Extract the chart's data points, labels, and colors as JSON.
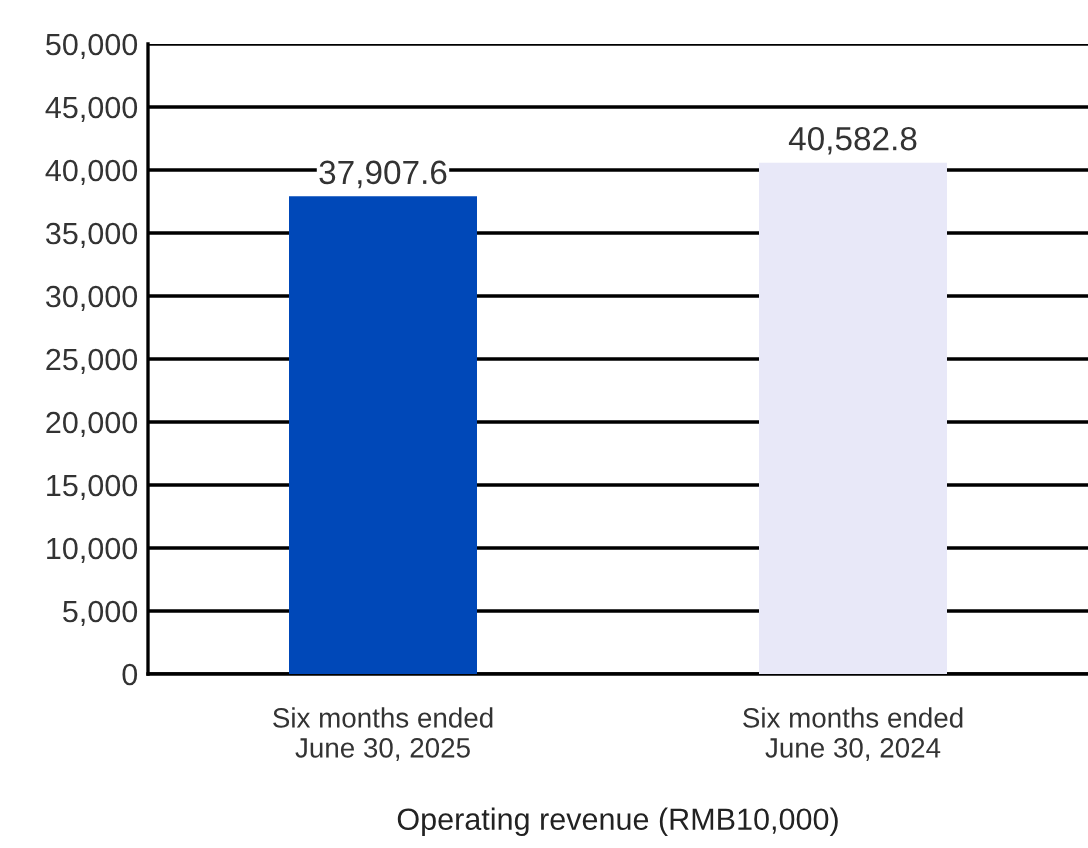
{
  "chart_data": {
    "type": "bar",
    "xlabel": "Operating revenue (RMB10,000)",
    "categories": [
      "Six months ended\nJune 30, 2025",
      "Six months ended\nJune 30, 2024"
    ],
    "values": [
      37907.6,
      40582.8
    ],
    "colors": [
      "#0048b8",
      "#e8e8f8"
    ],
    "value_labels": [
      "37,907.6",
      "40,582.8"
    ],
    "ylim": [
      0,
      50000
    ],
    "yticks": [
      0,
      {
        "value": 5000,
        "label": "5,000"
      },
      {
        "value": 10000,
        "label": "10,000"
      },
      {
        "value": 15000,
        "label": "15,000"
      },
      {
        "value": 20000,
        "label": "20,000"
      },
      {
        "value": 25000,
        "label": "25,000"
      },
      {
        "value": 30000,
        "label": "30,000"
      },
      {
        "value": 35000,
        "label": "35,000"
      },
      {
        "value": 40000,
        "label": "40,000"
      },
      {
        "value": 45000,
        "label": "45,000"
      },
      {
        "value": 50000,
        "label": "50,000"
      }
    ],
    "grid": "y",
    "legend": false
  }
}
